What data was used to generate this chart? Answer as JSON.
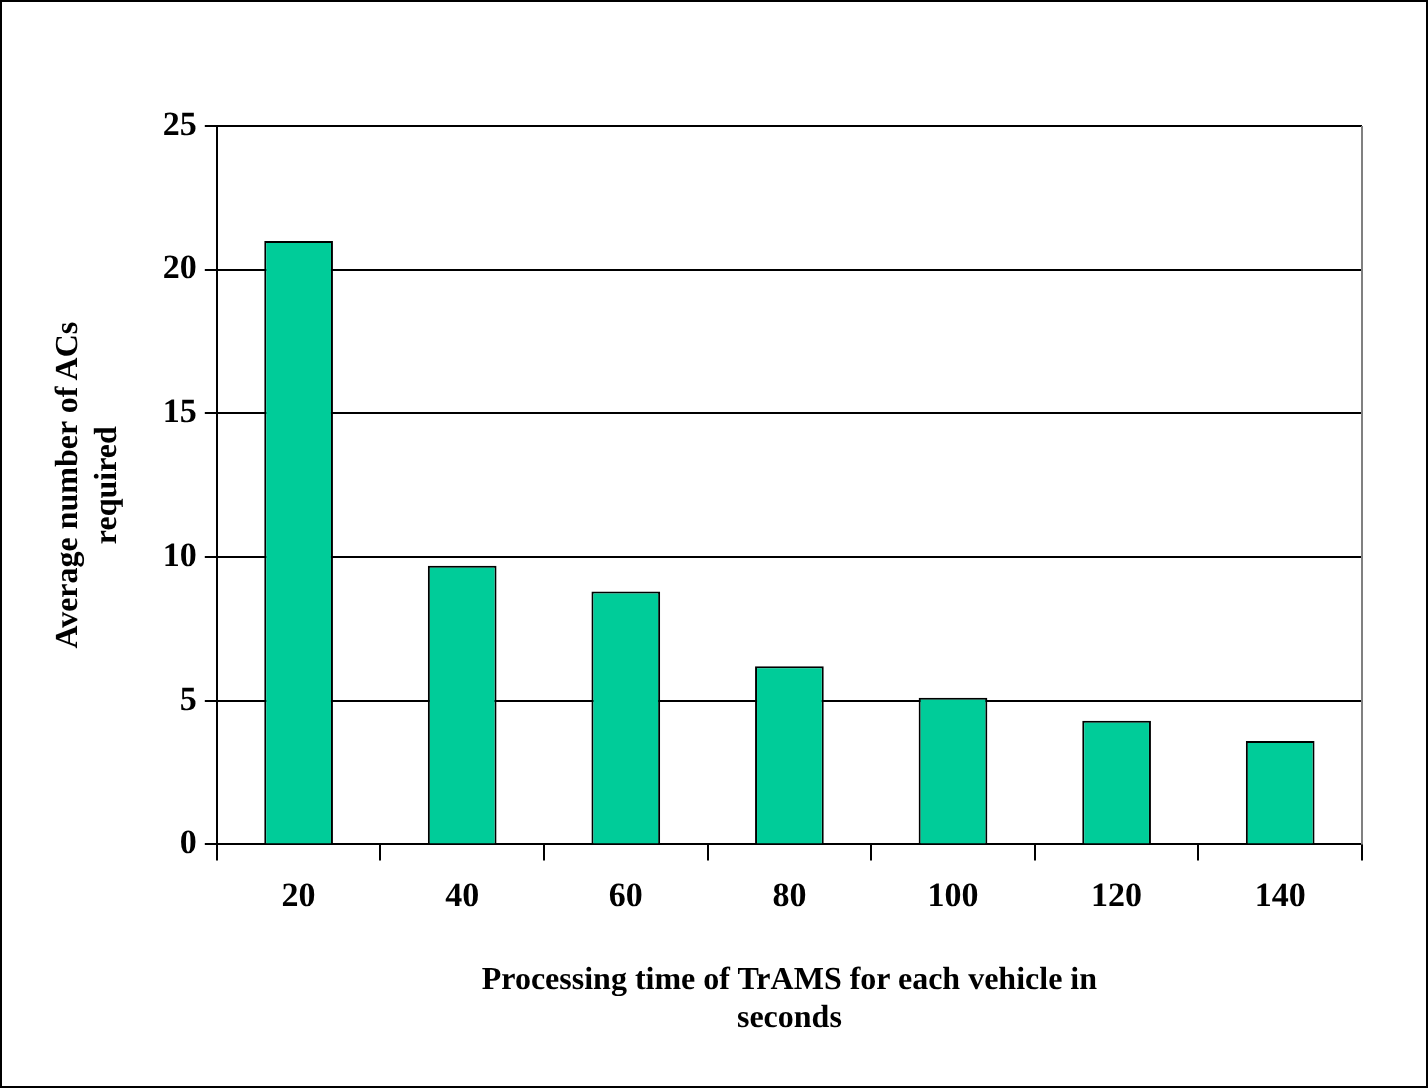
{
  "chart_data": {
    "type": "bar",
    "xlabel": "Processing time of TrAMS for each vehicle in seconds",
    "ylabel": "Average number of ACs required",
    "categories": [
      "20",
      "40",
      "60",
      "80",
      "100",
      "120",
      "140"
    ],
    "values": [
      21.0,
      9.7,
      8.8,
      6.2,
      5.1,
      4.3,
      3.6
    ],
    "color": "#00cc99",
    "ylim": [
      0,
      25
    ],
    "yticks": [
      0,
      5,
      10,
      15,
      20,
      25
    ],
    "grid": "y",
    "legend": false
  }
}
